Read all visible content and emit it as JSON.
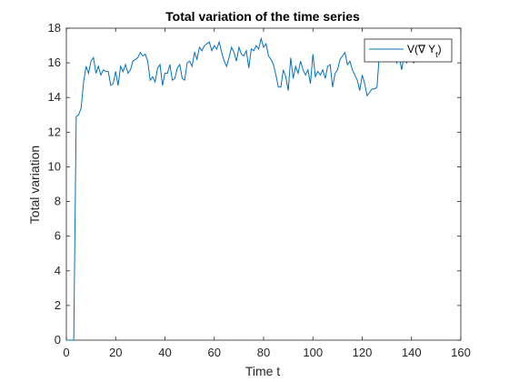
{
  "chart_data": {
    "type": "line",
    "title": "Total variation of the time series",
    "xlabel": "Time t",
    "ylabel": "Total variation",
    "xlim": [
      0,
      160
    ],
    "ylim": [
      0,
      18
    ],
    "xticks": [
      0,
      20,
      40,
      60,
      80,
      100,
      120,
      140,
      160
    ],
    "yticks": [
      0,
      2,
      4,
      6,
      8,
      10,
      12,
      14,
      16,
      18
    ],
    "grid": false,
    "legend": {
      "position": "top-right",
      "entries": [
        {
          "label": "V(∇ Y",
          "subscript": "t",
          "suffix": ")"
        }
      ]
    },
    "line_color": "#0072BD",
    "series": [
      {
        "x": [
          0,
          1,
          2,
          3,
          4,
          5,
          6,
          7,
          8,
          9,
          10,
          11,
          12,
          13,
          14,
          15,
          16,
          17,
          18,
          19,
          20,
          21,
          22,
          23,
          24,
          25,
          26,
          27,
          28,
          29,
          30,
          31,
          32,
          33,
          34,
          35,
          36,
          37,
          38,
          39,
          40,
          41,
          42,
          43,
          44,
          45,
          46,
          47,
          48,
          49,
          50,
          51,
          52,
          53,
          54,
          55,
          56,
          57,
          58,
          59,
          60,
          61,
          62,
          63,
          64,
          65,
          66,
          67,
          68,
          69,
          70,
          71,
          72,
          73,
          74,
          75,
          76,
          77,
          78,
          79,
          80,
          81,
          82,
          83,
          84,
          85,
          86,
          87,
          88,
          89,
          90,
          91,
          92,
          93,
          94,
          95,
          96,
          97,
          98,
          99,
          100,
          101,
          102,
          103,
          104,
          105,
          106,
          107,
          108,
          109,
          110,
          111,
          112,
          113,
          114,
          115,
          116,
          117,
          118,
          119,
          120,
          121,
          122,
          123,
          124,
          125,
          126,
          127,
          128,
          129,
          130,
          131,
          132,
          133,
          134,
          135,
          136,
          137,
          138,
          139,
          140,
          141,
          142,
          143,
          144,
          145,
          146,
          147,
          148,
          149,
          150,
          151,
          152,
          153
        ],
        "values": [
          0,
          0,
          0,
          0,
          12.9,
          13.0,
          13.4,
          14.9,
          15.8,
          15.4,
          16.1,
          16.3,
          15.4,
          15.8,
          15.3,
          15.6,
          15.5,
          15.5,
          14.7,
          14.8,
          15.5,
          14.7,
          15.8,
          15.5,
          15.9,
          15.4,
          15.6,
          16.1,
          16.2,
          16.3,
          16.6,
          16.4,
          16.5,
          16.1,
          15.0,
          15.2,
          14.9,
          15.7,
          15.9,
          14.7,
          15.4,
          15.4,
          15.9,
          15.0,
          15.1,
          15.7,
          15.9,
          15.1,
          15.0,
          16.0,
          16.1,
          15.8,
          16.6,
          16.2,
          16.9,
          16.7,
          17.0,
          17.1,
          17.2,
          16.7,
          17.0,
          16.8,
          17.2,
          16.6,
          16.1,
          15.8,
          16.3,
          16.9,
          16.6,
          16.1,
          16.9,
          16.5,
          16.4,
          16.7,
          15.7,
          16.8,
          16.7,
          17.0,
          16.8,
          17.4,
          16.9,
          17.1,
          16.4,
          16.2,
          15.9,
          15.3,
          14.6,
          14.6,
          15.6,
          15.2,
          14.4,
          16.3,
          15.1,
          15.8,
          15.4,
          16.1,
          15.6,
          15.3,
          15.6,
          14.8,
          16.5,
          15.2,
          15.5,
          15.3,
          15.6,
          15.1,
          15.8,
          15.9,
          14.6,
          15.4,
          15.6,
          16.2,
          16.4,
          16.6,
          15.9,
          16.1,
          15.6,
          15.3,
          15.0,
          14.4,
          15.3,
          14.8,
          14.1,
          14.3,
          14.5,
          14.5,
          14.6,
          16.6,
          16.3,
          16.7,
          16.1,
          16.7,
          16.2,
          16.8,
          16.0,
          16.4,
          15.6,
          16.4,
          16.0,
          16.4,
          16.1,
          16.0,
          16.3,
          16.1,
          16.4,
          16.2,
          16.1,
          16.5,
          16.2,
          16.4,
          16.2,
          16.3,
          16.1,
          16.3
        ]
      }
    ]
  }
}
